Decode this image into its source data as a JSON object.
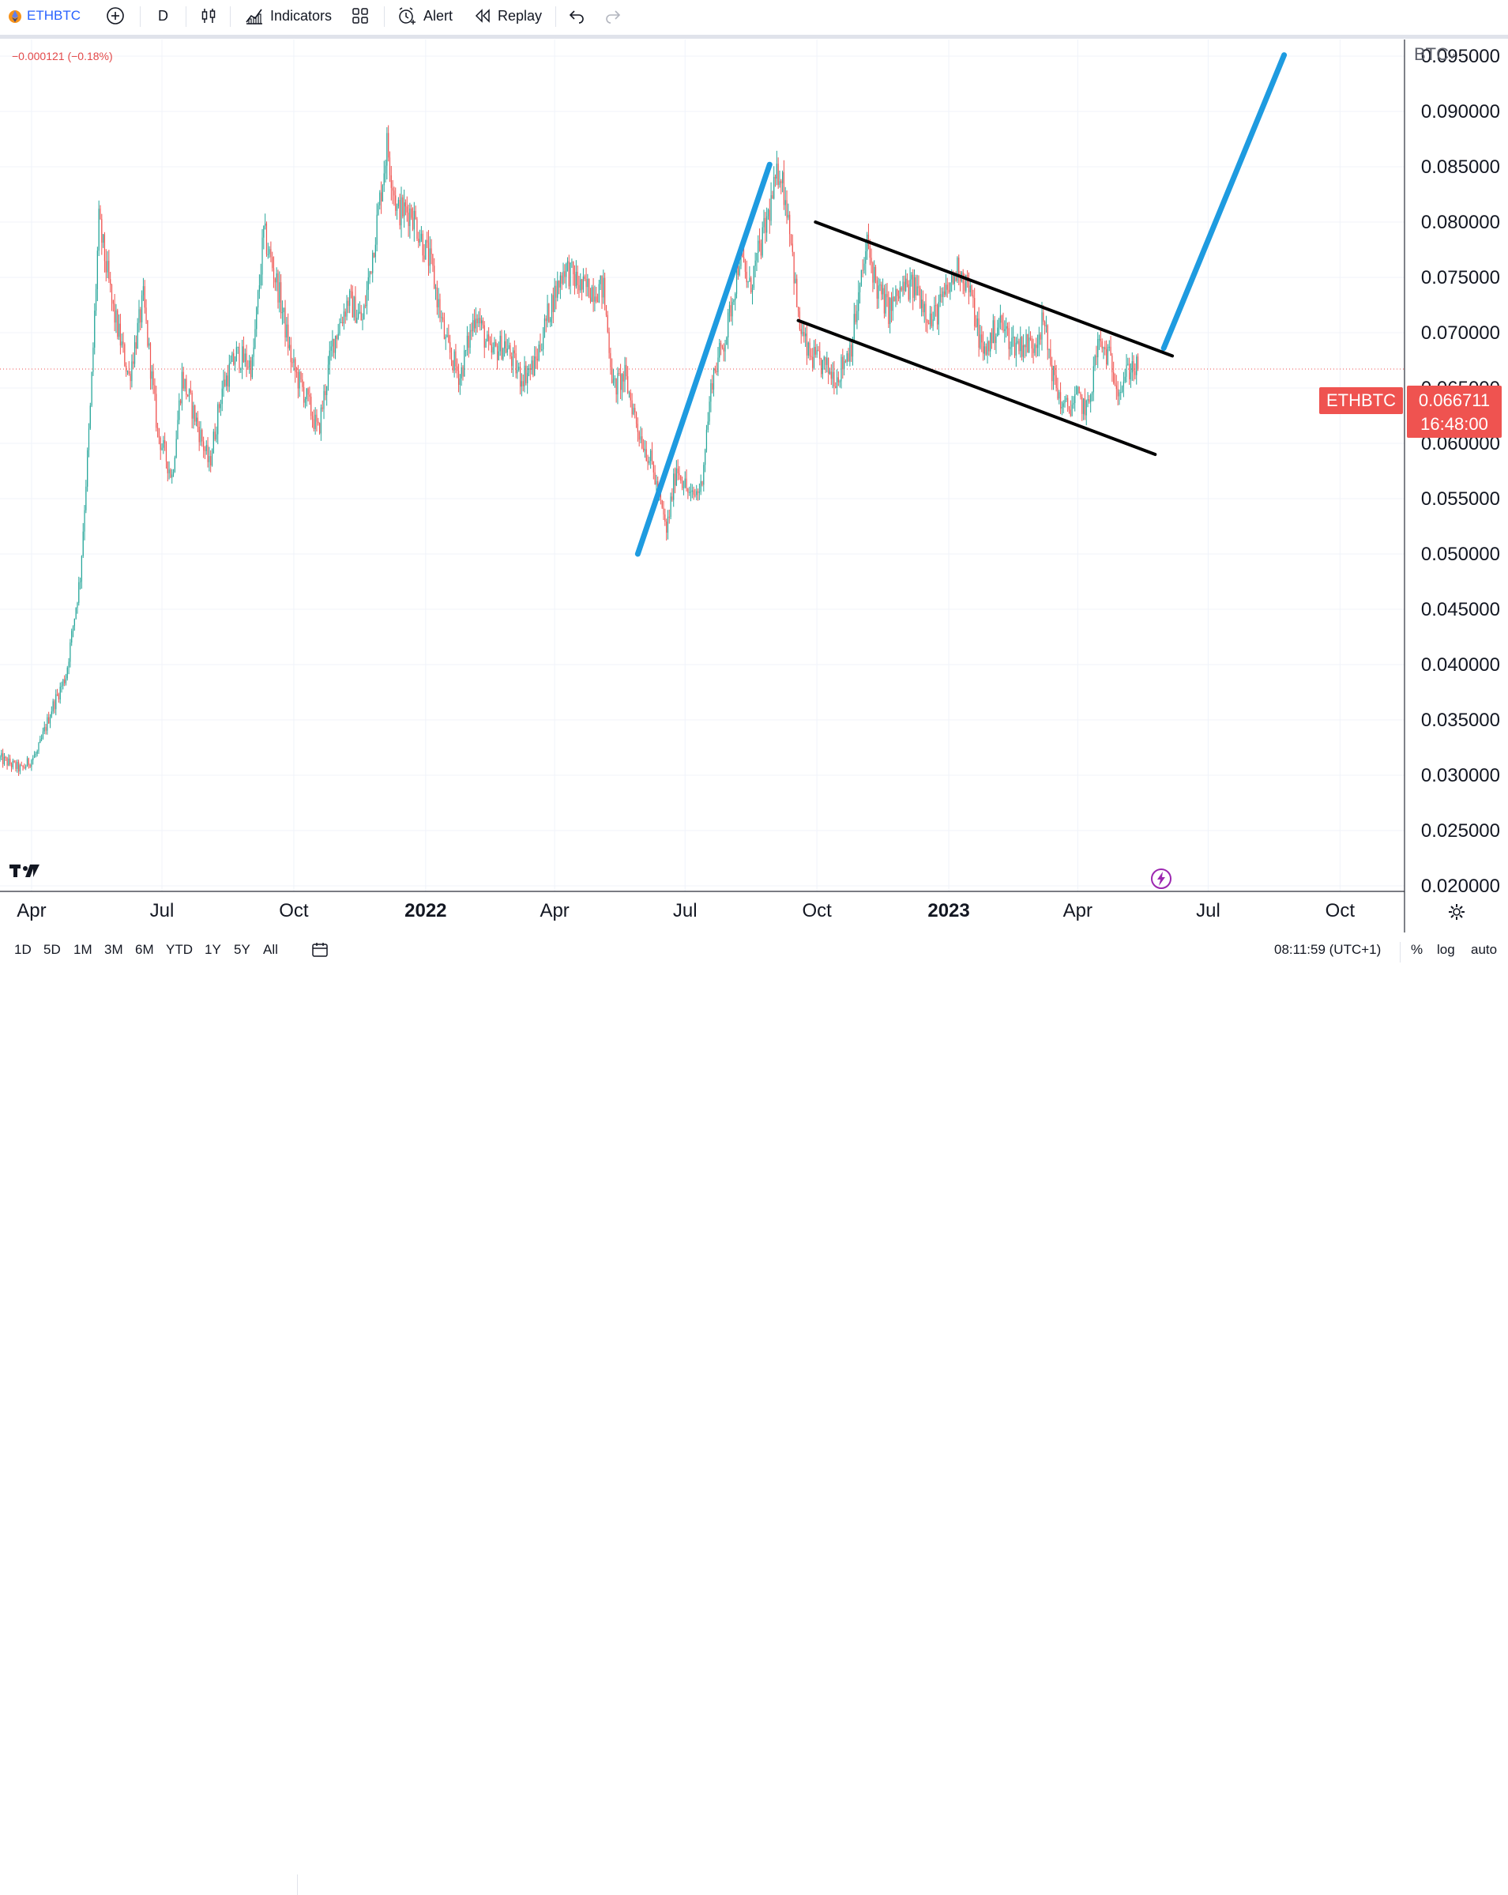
{
  "toolbar": {
    "symbol": "ETHBTC",
    "interval": "D",
    "indicators_label": "Indicators",
    "alert_label": "Alert",
    "replay_label": "Replay",
    "icons": [
      "eth-coin-icon",
      "add-symbol-icon",
      "candles-icon",
      "indicators-icon",
      "layout-icon",
      "alert-icon",
      "replay-icon",
      "undo-icon",
      "redo-icon"
    ]
  },
  "header": {
    "change_text": "−0.000121 (−0.18%)"
  },
  "price_tag": {
    "symbol": "ETHBTC",
    "value": "0.066711",
    "countdown": "16:48:00",
    "color": "#ef5350"
  },
  "bottombar": {
    "ranges": [
      "1D",
      "5D",
      "1M",
      "3M",
      "6M",
      "YTD",
      "1Y",
      "5Y",
      "All"
    ],
    "time": "08:11:59 (UTC+1)",
    "percent": "%",
    "log": "log",
    "auto": "auto"
  },
  "chart_data": {
    "type": "candlestick",
    "ylabel": "BTC",
    "ylim": [
      0.0195,
      0.0965
    ],
    "yticks": [
      0.095,
      0.09,
      0.085,
      0.08,
      0.075,
      0.07,
      0.065,
      0.06,
      0.055,
      0.05,
      0.045,
      0.04,
      0.035,
      0.03,
      0.025,
      0.02
    ],
    "ytick_labels": [
      "0.095000",
      "0.090000",
      "0.085000",
      "0.080000",
      "0.075000",
      "0.070000",
      "0.065000",
      "0.060000",
      "0.055000",
      "0.050000",
      "0.045000",
      "0.040000",
      "0.035000",
      "0.030000",
      "0.025000",
      "0.020000"
    ],
    "x_range": [
      "2021-03-10",
      "2023-11-15"
    ],
    "xticks": [
      {
        "date": "2021-04-01",
        "label": "Apr",
        "bold": false
      },
      {
        "date": "2021-07-01",
        "label": "Jul",
        "bold": false
      },
      {
        "date": "2021-10-01",
        "label": "Oct",
        "bold": false
      },
      {
        "date": "2022-01-01",
        "label": "2022",
        "bold": true
      },
      {
        "date": "2022-04-01",
        "label": "Apr",
        "bold": false
      },
      {
        "date": "2022-07-01",
        "label": "Jul",
        "bold": false
      },
      {
        "date": "2022-10-01",
        "label": "Oct",
        "bold": false
      },
      {
        "date": "2023-01-01",
        "label": "2023",
        "bold": true
      },
      {
        "date": "2023-04-01",
        "label": "Apr",
        "bold": false
      },
      {
        "date": "2023-07-01",
        "label": "Jul",
        "bold": false
      },
      {
        "date": "2023-10-01",
        "label": "Oct",
        "bold": false
      }
    ],
    "last_price": 0.066711,
    "up_color": "#26a69a",
    "down_color": "#ef5350",
    "price_path": [
      [
        "2021-03-10",
        0.0315
      ],
      [
        "2021-03-25",
        0.0305
      ],
      [
        "2021-04-05",
        0.032
      ],
      [
        "2021-04-15",
        0.036
      ],
      [
        "2021-04-25",
        0.039
      ],
      [
        "2021-05-05",
        0.048
      ],
      [
        "2021-05-12",
        0.063
      ],
      [
        "2021-05-18",
        0.08
      ],
      [
        "2021-05-28",
        0.072
      ],
      [
        "2021-06-08",
        0.066
      ],
      [
        "2021-06-18",
        0.073
      ],
      [
        "2021-06-28",
        0.061
      ],
      [
        "2021-07-08",
        0.057
      ],
      [
        "2021-07-15",
        0.066
      ],
      [
        "2021-07-25",
        0.062
      ],
      [
        "2021-08-03",
        0.058
      ],
      [
        "2021-08-12",
        0.065
      ],
      [
        "2021-08-22",
        0.068
      ],
      [
        "2021-09-02",
        0.067
      ],
      [
        "2021-09-10",
        0.079
      ],
      [
        "2021-09-20",
        0.074
      ],
      [
        "2021-09-30",
        0.067
      ],
      [
        "2021-10-10",
        0.064
      ],
      [
        "2021-10-18",
        0.061
      ],
      [
        "2021-10-28",
        0.069
      ],
      [
        "2021-11-08",
        0.073
      ],
      [
        "2021-11-18",
        0.071
      ],
      [
        "2021-11-28",
        0.08
      ],
      [
        "2021-12-05",
        0.087
      ],
      [
        "2021-12-12",
        0.081
      ],
      [
        "2021-12-22",
        0.081
      ],
      [
        "2022-01-05",
        0.076
      ],
      [
        "2022-01-15",
        0.069
      ],
      [
        "2022-01-25",
        0.066
      ],
      [
        "2022-02-05",
        0.072
      ],
      [
        "2022-02-15",
        0.068
      ],
      [
        "2022-02-25",
        0.069
      ],
      [
        "2022-03-08",
        0.066
      ],
      [
        "2022-03-18",
        0.067
      ],
      [
        "2022-03-28",
        0.072
      ],
      [
        "2022-04-08",
        0.076
      ],
      [
        "2022-04-20",
        0.074
      ],
      [
        "2022-05-05",
        0.074
      ],
      [
        "2022-05-12",
        0.065
      ],
      [
        "2022-05-20",
        0.066
      ],
      [
        "2022-05-30",
        0.061
      ],
      [
        "2022-06-08",
        0.058
      ],
      [
        "2022-06-18",
        0.052
      ],
      [
        "2022-06-25",
        0.058
      ],
      [
        "2022-07-05",
        0.055
      ],
      [
        "2022-07-12",
        0.056
      ],
      [
        "2022-07-20",
        0.066
      ],
      [
        "2022-07-30",
        0.07
      ],
      [
        "2022-08-08",
        0.077
      ],
      [
        "2022-08-15",
        0.074
      ],
      [
        "2022-08-25",
        0.079
      ],
      [
        "2022-09-05",
        0.085
      ],
      [
        "2022-09-12",
        0.08
      ],
      [
        "2022-09-18",
        0.071
      ],
      [
        "2022-09-25",
        0.068
      ],
      [
        "2022-10-05",
        0.067
      ],
      [
        "2022-10-15",
        0.066
      ],
      [
        "2022-10-25",
        0.069
      ],
      [
        "2022-11-05",
        0.078
      ],
      [
        "2022-11-12",
        0.074
      ],
      [
        "2022-11-20",
        0.072
      ],
      [
        "2022-11-30",
        0.074
      ],
      [
        "2022-12-10",
        0.074
      ],
      [
        "2022-12-20",
        0.071
      ],
      [
        "2023-01-01",
        0.074
      ],
      [
        "2023-01-08",
        0.076
      ],
      [
        "2023-01-15",
        0.074
      ],
      [
        "2023-01-25",
        0.068
      ],
      [
        "2023-02-05",
        0.071
      ],
      [
        "2023-02-15",
        0.069
      ],
      [
        "2023-03-01",
        0.069
      ],
      [
        "2023-03-08",
        0.071
      ],
      [
        "2023-03-15",
        0.066
      ],
      [
        "2023-03-22",
        0.063
      ],
      [
        "2023-04-01",
        0.064
      ],
      [
        "2023-04-08",
        0.063
      ],
      [
        "2023-04-15",
        0.069
      ],
      [
        "2023-04-22",
        0.068
      ],
      [
        "2023-04-30",
        0.065
      ],
      [
        "2023-05-08",
        0.067
      ],
      [
        "2023-05-13",
        0.0667
      ]
    ],
    "annotations": [
      {
        "name": "blue-trendline-rally",
        "color": "#1e9be0",
        "points": [
          [
            "2022-05-29",
            0.05
          ],
          [
            "2022-08-29",
            0.0852
          ]
        ]
      },
      {
        "name": "blue-trendline-projection",
        "color": "#1e9be0",
        "points": [
          [
            "2023-05-31",
            0.0686
          ],
          [
            "2023-08-23",
            0.0951
          ]
        ]
      },
      {
        "name": "channel-upper-line",
        "color": "#000000",
        "points": [
          [
            "2022-09-30",
            0.08
          ],
          [
            "2023-06-06",
            0.0679
          ]
        ]
      },
      {
        "name": "channel-lower-line",
        "color": "#000000",
        "points": [
          [
            "2022-09-18",
            0.0711
          ],
          [
            "2023-05-25",
            0.059
          ]
        ]
      }
    ]
  }
}
